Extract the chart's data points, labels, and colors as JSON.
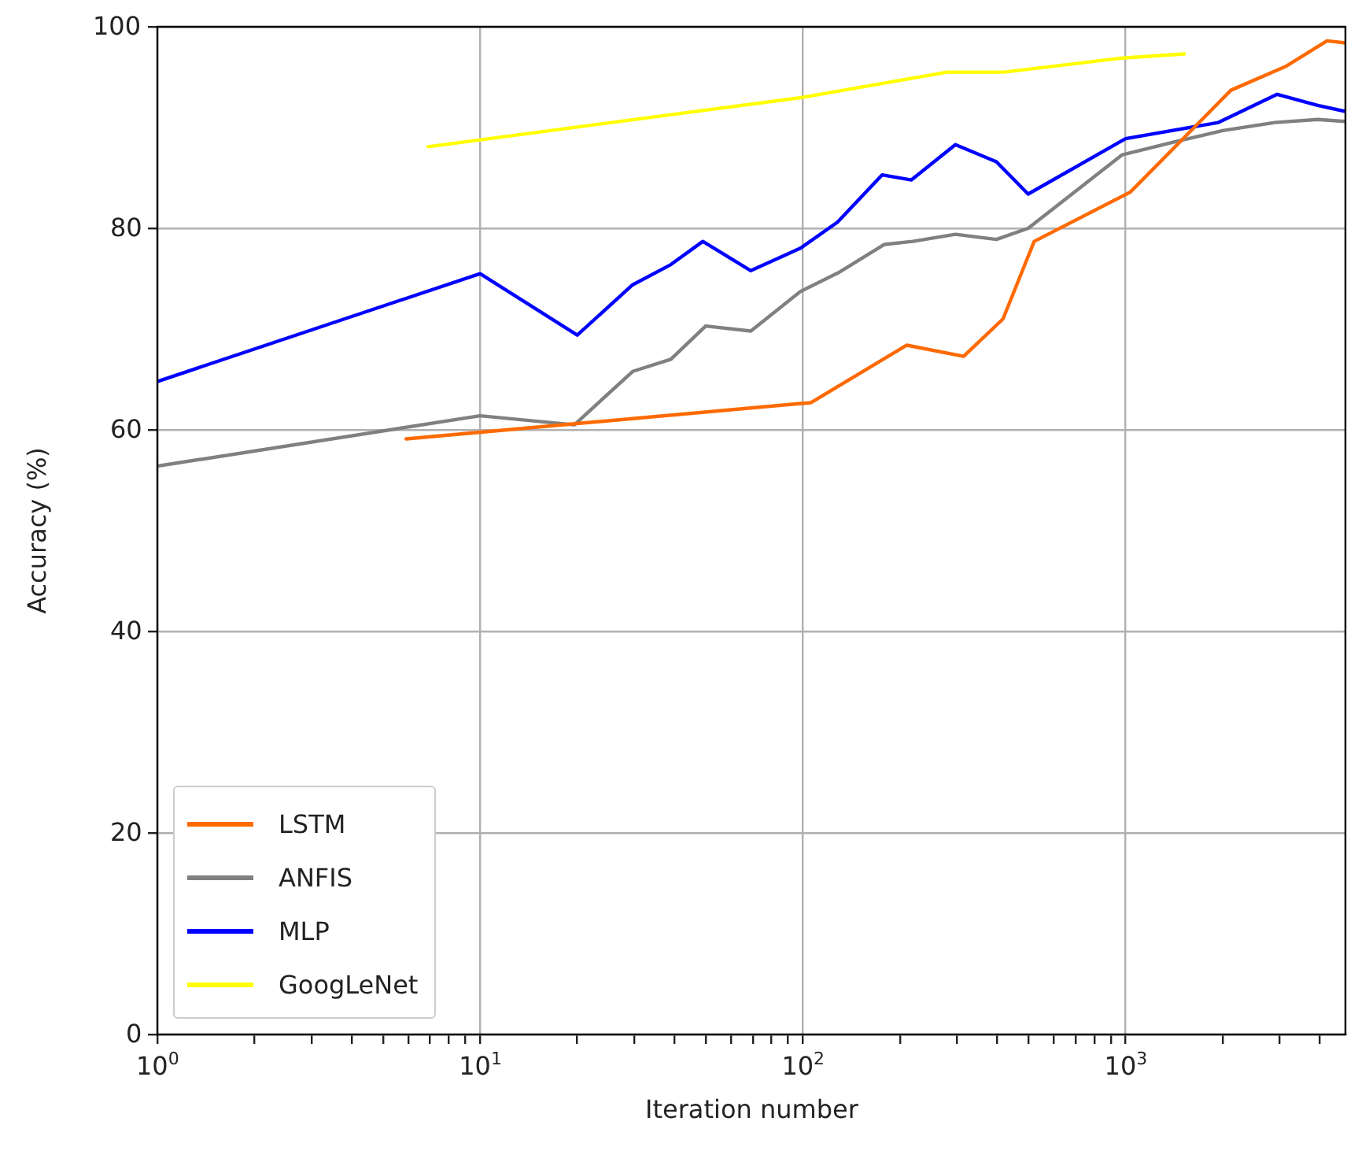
{
  "chart_data": {
    "type": "line",
    "xlabel": "Iteration number",
    "ylabel": "Accuracy (%)",
    "log": "x",
    "xlim": [
      1,
      4800
    ],
    "ylim": [
      0,
      100
    ],
    "xticks": [
      {
        "value": 1,
        "label": "10$^{0}$"
      },
      {
        "value": 2,
        "label": null
      },
      {
        "value": 3,
        "label": null
      },
      {
        "value": 4,
        "label": null
      },
      {
        "value": 5,
        "label": null
      },
      {
        "value": 6,
        "label": null
      },
      {
        "value": 7,
        "label": null
      },
      {
        "value": 8,
        "label": null
      },
      {
        "value": 9,
        "label": null
      },
      {
        "value": 10,
        "label": "10$^{1}$"
      },
      {
        "value": 20,
        "label": null
      },
      {
        "value": 30,
        "label": null
      },
      {
        "value": 40,
        "label": null
      },
      {
        "value": 50,
        "label": null
      },
      {
        "value": 60,
        "label": null
      },
      {
        "value": 70,
        "label": null
      },
      {
        "value": 80,
        "label": null
      },
      {
        "value": 90,
        "label": null
      },
      {
        "value": 100,
        "label": "10$^{2}$"
      },
      {
        "value": 200,
        "label": null
      },
      {
        "value": 300,
        "label": null
      },
      {
        "value": 400,
        "label": null
      },
      {
        "value": 500,
        "label": null
      },
      {
        "value": 600,
        "label": null
      },
      {
        "value": 700,
        "label": null
      },
      {
        "value": 800,
        "label": null
      },
      {
        "value": 900,
        "label": null
      },
      {
        "value": 1000,
        "label": "10$^{3}$"
      },
      {
        "value": 2000,
        "label": null
      },
      {
        "value": 3000,
        "label": null
      },
      {
        "value": 4000,
        "label": null
      }
    ],
    "yticks": [
      0,
      20,
      40,
      60,
      80,
      100
    ],
    "grid": true,
    "legend": "bottom left",
    "marker": "none",
    "line_style": "solid",
    "series": [
      {
        "name": "LSTM",
        "color": "#ff6a00",
        "x": [
          5.9,
          106,
          210,
          315,
          417,
          521,
          1035,
          2120,
          3150,
          4210,
          4800
        ],
        "values": [
          59.1,
          62.7,
          68.4,
          67.3,
          71.0,
          78.7,
          83.6,
          93.7,
          96.1,
          98.6,
          98.4
        ]
      },
      {
        "name": "ANFIS",
        "color": "#808080",
        "x": [
          1,
          10,
          19.6,
          29.7,
          39,
          50,
          69,
          98,
          129,
          179,
          219,
          297,
          398,
          499,
          977,
          1430,
          2000,
          2900,
          3940,
          4800
        ],
        "values": [
          56.4,
          61.4,
          60.5,
          65.8,
          67.0,
          70.3,
          69.8,
          73.7,
          75.6,
          78.4,
          78.7,
          79.4,
          78.9,
          80.0,
          87.3,
          88.6,
          89.7,
          90.5,
          90.8,
          90.6
        ]
      },
      {
        "name": "MLP",
        "color": "#0000ff",
        "x": [
          1,
          10,
          20,
          29.7,
          39,
          49,
          69,
          98,
          128,
          176,
          217,
          297,
          398,
          499,
          1000,
          1940,
          2950,
          3940,
          4800
        ],
        "values": [
          64.8,
          75.5,
          69.4,
          74.4,
          76.4,
          78.7,
          75.8,
          78.0,
          80.6,
          85.3,
          84.8,
          88.3,
          86.6,
          83.4,
          88.9,
          90.5,
          93.3,
          92.2,
          91.6
        ]
      },
      {
        "name": "GoogLeNet",
        "color": "#ffff00",
        "x": [
          6.9,
          100,
          280,
          420,
          980,
          1520
        ],
        "values": [
          88.1,
          93.0,
          95.5,
          95.5,
          96.9,
          97.3
        ]
      }
    ]
  }
}
